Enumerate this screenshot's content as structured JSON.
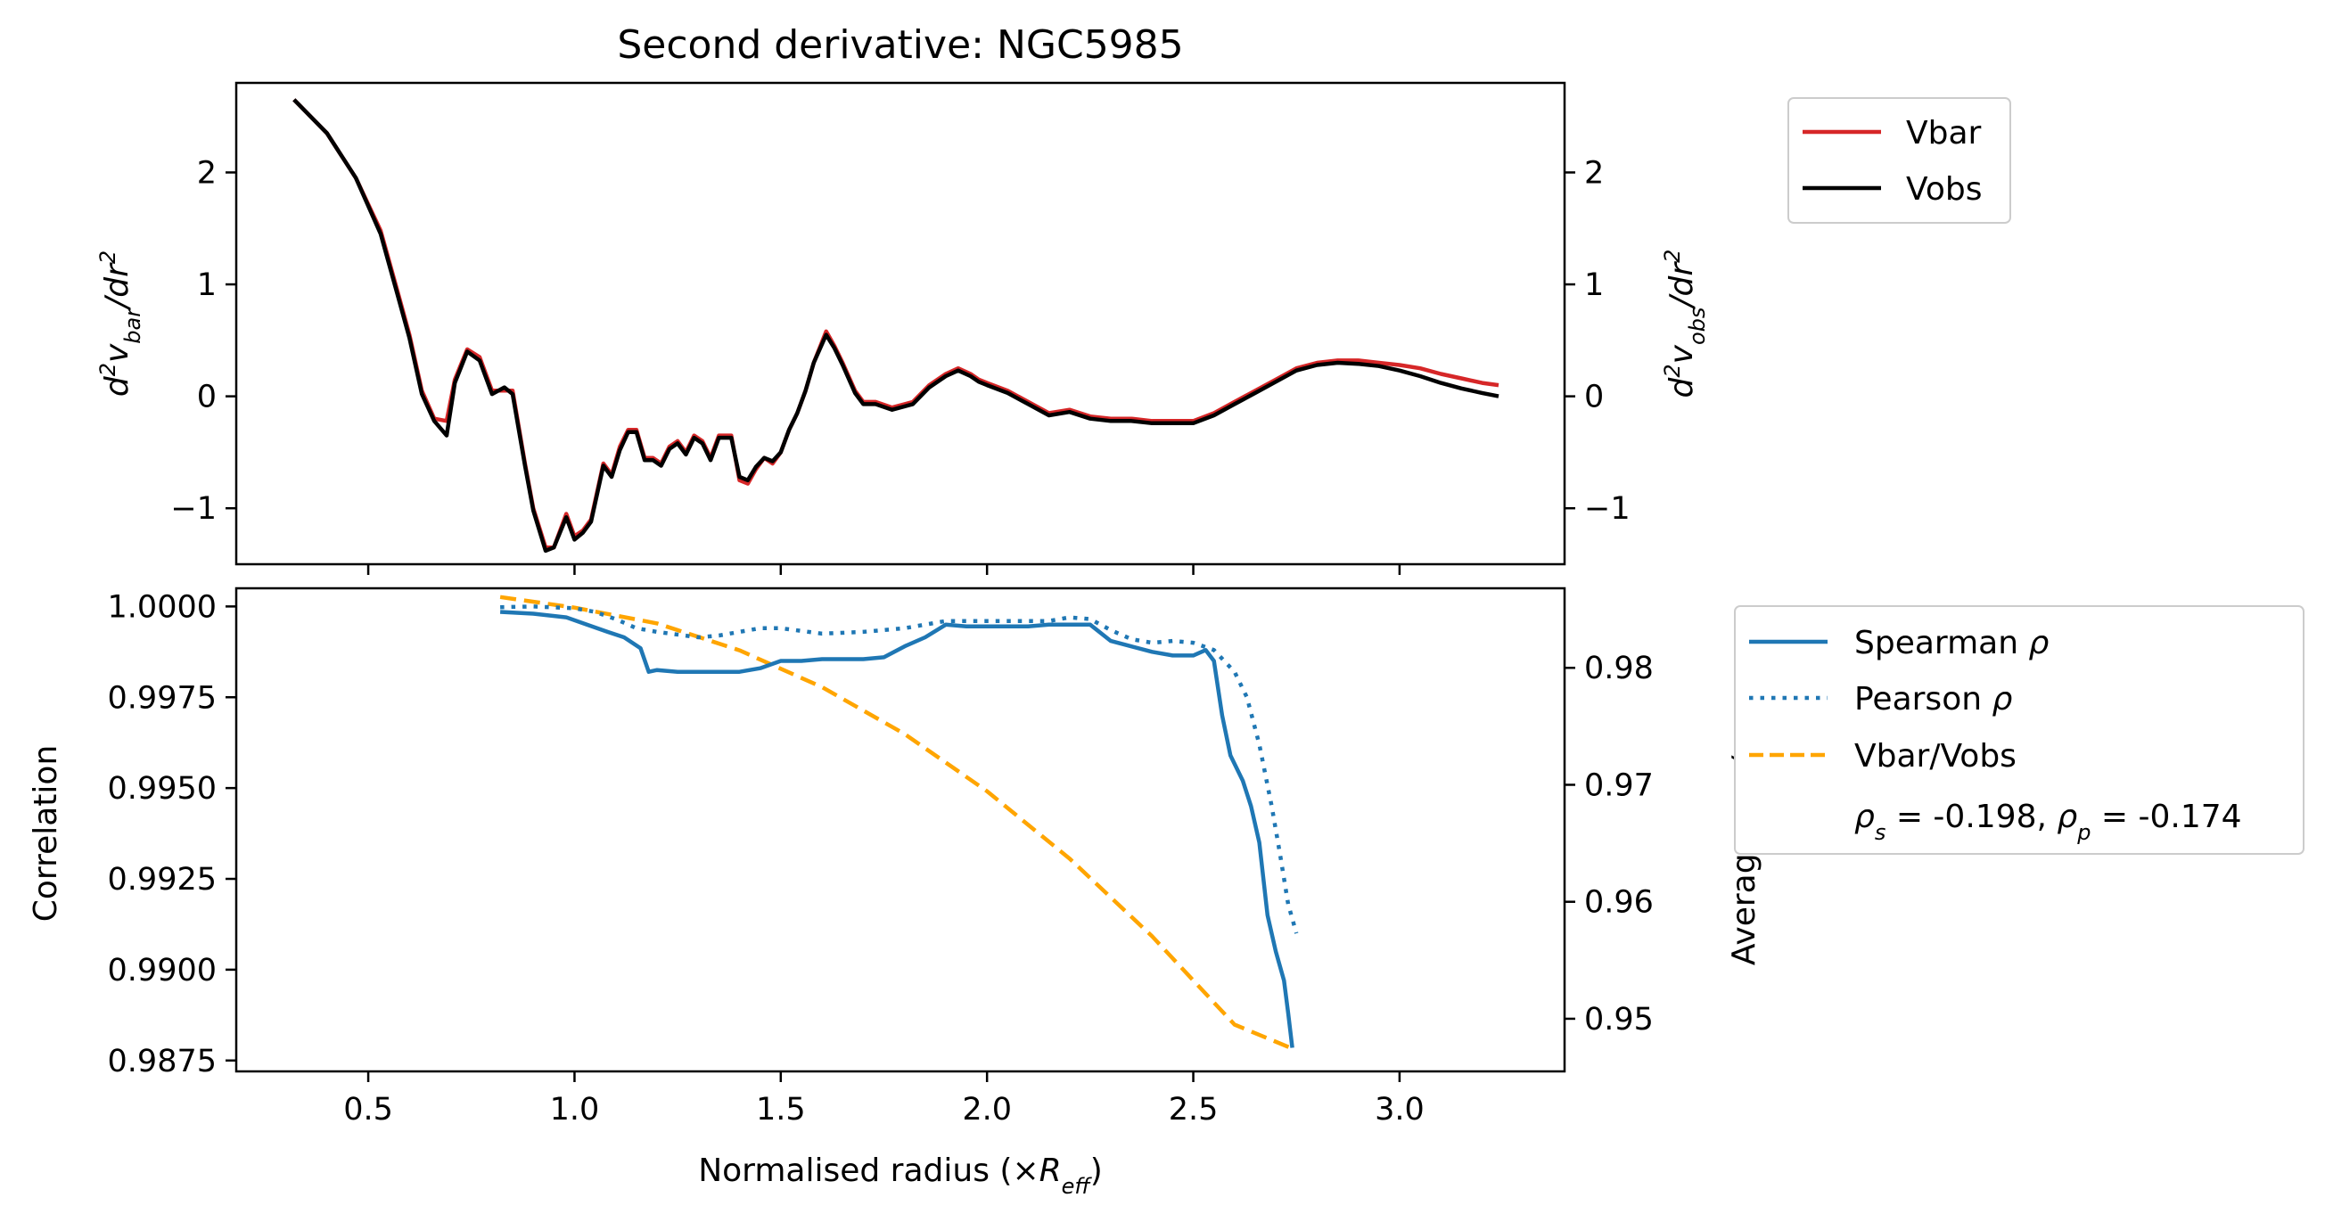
{
  "colors": {
    "vbar": "#d62728",
    "vobs": "#000000",
    "spearman": "#1f77b4",
    "pearson": "#1f77b4",
    "ratio": "#ffa500"
  },
  "chart_data": [
    {
      "type": "line",
      "title": "Second derivative: NGC5985",
      "xlabel": "",
      "ylabel_left": "d²v_bar/dr²",
      "ylabel_right": "d²v_obs/dr²",
      "xlim": [
        0.18,
        3.4
      ],
      "ylim": [
        -1.5,
        2.8
      ],
      "x_ticks": [
        "0.5",
        "1.0",
        "1.5",
        "2.0",
        "2.5",
        "3.0"
      ],
      "y_ticks_left": [
        "2",
        "1",
        "0",
        "−1"
      ],
      "y_ticks_left_values": [
        2,
        1,
        0,
        -1
      ],
      "y_ticks_right": [
        "2",
        "1",
        "0",
        "−1"
      ],
      "y_ticks_right_values": [
        2,
        1,
        0,
        -1
      ],
      "grid": false,
      "legend": "outside upper right",
      "series": [
        {
          "name": "Vbar",
          "axis": "left",
          "x": [
            0.32,
            0.4,
            0.47,
            0.53,
            0.57,
            0.6,
            0.63,
            0.66,
            0.69,
            0.71,
            0.74,
            0.77,
            0.8,
            0.83,
            0.85,
            0.88,
            0.9,
            0.93,
            0.95,
            0.98,
            1.0,
            1.02,
            1.04,
            1.07,
            1.09,
            1.11,
            1.13,
            1.15,
            1.17,
            1.19,
            1.21,
            1.23,
            1.25,
            1.27,
            1.29,
            1.31,
            1.33,
            1.35,
            1.38,
            1.4,
            1.42,
            1.44,
            1.46,
            1.48,
            1.5,
            1.52,
            1.54,
            1.56,
            1.58,
            1.61,
            1.63,
            1.65,
            1.68,
            1.7,
            1.73,
            1.77,
            1.82,
            1.86,
            1.9,
            1.93,
            1.96,
            1.98,
            2.0,
            2.05,
            2.1,
            2.15,
            2.2,
            2.25,
            2.3,
            2.35,
            2.4,
            2.45,
            2.5,
            2.55,
            2.6,
            2.65,
            2.7,
            2.75,
            2.8,
            2.85,
            2.9,
            2.95,
            3.0,
            3.05,
            3.1,
            3.15,
            3.2,
            3.24
          ],
          "y": [
            2.65,
            2.35,
            1.95,
            1.48,
            0.95,
            0.55,
            0.05,
            -0.2,
            -0.22,
            0.15,
            0.42,
            0.35,
            0.05,
            0.05,
            0.05,
            -0.6,
            -1.0,
            -1.35,
            -1.35,
            -1.05,
            -1.25,
            -1.2,
            -1.1,
            -0.6,
            -0.7,
            -0.45,
            -0.3,
            -0.3,
            -0.55,
            -0.55,
            -0.6,
            -0.45,
            -0.4,
            -0.5,
            -0.35,
            -0.4,
            -0.55,
            -0.35,
            -0.35,
            -0.75,
            -0.78,
            -0.65,
            -0.55,
            -0.6,
            -0.5,
            -0.3,
            -0.15,
            0.05,
            0.3,
            0.58,
            0.45,
            0.3,
            0.05,
            -0.05,
            -0.05,
            -0.1,
            -0.05,
            0.1,
            0.2,
            0.25,
            0.2,
            0.15,
            0.12,
            0.05,
            -0.05,
            -0.15,
            -0.12,
            -0.18,
            -0.2,
            -0.2,
            -0.22,
            -0.22,
            -0.22,
            -0.15,
            -0.05,
            0.05,
            0.15,
            0.25,
            0.3,
            0.32,
            0.32,
            0.3,
            0.28,
            0.25,
            0.2,
            0.16,
            0.12,
            0.1
          ]
        },
        {
          "name": "Vobs",
          "axis": "right",
          "x": [
            0.32,
            0.4,
            0.47,
            0.53,
            0.57,
            0.6,
            0.63,
            0.66,
            0.69,
            0.71,
            0.74,
            0.77,
            0.8,
            0.83,
            0.85,
            0.88,
            0.9,
            0.93,
            0.95,
            0.98,
            1.0,
            1.02,
            1.04,
            1.07,
            1.09,
            1.11,
            1.13,
            1.15,
            1.17,
            1.19,
            1.21,
            1.23,
            1.25,
            1.27,
            1.29,
            1.31,
            1.33,
            1.35,
            1.38,
            1.4,
            1.42,
            1.44,
            1.46,
            1.48,
            1.5,
            1.52,
            1.54,
            1.56,
            1.58,
            1.61,
            1.63,
            1.65,
            1.68,
            1.7,
            1.73,
            1.77,
            1.82,
            1.86,
            1.9,
            1.93,
            1.96,
            1.98,
            2.0,
            2.05,
            2.1,
            2.15,
            2.2,
            2.25,
            2.3,
            2.35,
            2.4,
            2.45,
            2.5,
            2.55,
            2.6,
            2.65,
            2.7,
            2.75,
            2.8,
            2.85,
            2.9,
            2.95,
            3.0,
            3.05,
            3.1,
            3.15,
            3.2,
            3.24
          ],
          "y": [
            2.65,
            2.35,
            1.95,
            1.45,
            0.92,
            0.52,
            0.02,
            -0.22,
            -0.35,
            0.12,
            0.4,
            0.32,
            0.02,
            0.08,
            0.02,
            -0.62,
            -1.02,
            -1.38,
            -1.35,
            -1.08,
            -1.28,
            -1.22,
            -1.12,
            -0.62,
            -0.72,
            -0.48,
            -0.32,
            -0.32,
            -0.57,
            -0.57,
            -0.62,
            -0.47,
            -0.42,
            -0.52,
            -0.37,
            -0.42,
            -0.57,
            -0.37,
            -0.37,
            -0.72,
            -0.75,
            -0.63,
            -0.55,
            -0.58,
            -0.5,
            -0.3,
            -0.15,
            0.05,
            0.3,
            0.55,
            0.43,
            0.28,
            0.03,
            -0.07,
            -0.07,
            -0.12,
            -0.07,
            0.08,
            0.18,
            0.23,
            0.18,
            0.13,
            0.1,
            0.03,
            -0.07,
            -0.17,
            -0.14,
            -0.2,
            -0.22,
            -0.22,
            -0.24,
            -0.24,
            -0.24,
            -0.17,
            -0.07,
            0.03,
            0.13,
            0.23,
            0.28,
            0.3,
            0.29,
            0.27,
            0.23,
            0.18,
            0.12,
            0.07,
            0.03,
            0.0
          ]
        }
      ]
    },
    {
      "type": "line",
      "title": "",
      "xlabel": "Normalised radius (×R_eff)",
      "ylabel_left": "Correlation",
      "ylabel_right": "Average v_bar/v_obs",
      "xlim": [
        0.18,
        3.4
      ],
      "ylim_left": [
        0.9872,
        1.0005
      ],
      "ylim_right": [
        0.9455,
        0.9868
      ],
      "x_ticks": [
        "0.5",
        "1.0",
        "1.5",
        "2.0",
        "2.5",
        "3.0"
      ],
      "x_ticks_values": [
        0.5,
        1.0,
        1.5,
        2.0,
        2.5,
        3.0
      ],
      "y_ticks_left": [
        "1.0000",
        "0.9975",
        "0.9950",
        "0.9925",
        "0.9900",
        "0.9875"
      ],
      "y_ticks_left_values": [
        1.0,
        0.9975,
        0.995,
        0.9925,
        0.99,
        0.9875
      ],
      "y_ticks_right": [
        "0.98",
        "0.97",
        "0.96",
        "0.95"
      ],
      "y_ticks_right_values": [
        0.98,
        0.97,
        0.96,
        0.95
      ],
      "grid": false,
      "legend": "outside upper right",
      "legend_annotation": "ρ_s = -0.198, ρ_p = -0.174",
      "series": [
        {
          "name": "Spearman ρ",
          "axis": "left",
          "style": "solid",
          "x": [
            0.82,
            0.9,
            0.98,
            1.03,
            1.08,
            1.12,
            1.16,
            1.18,
            1.2,
            1.25,
            1.3,
            1.35,
            1.4,
            1.45,
            1.5,
            1.55,
            1.6,
            1.65,
            1.7,
            1.75,
            1.8,
            1.85,
            1.9,
            1.95,
            2.0,
            2.05,
            2.1,
            2.15,
            2.2,
            2.25,
            2.3,
            2.35,
            2.4,
            2.45,
            2.5,
            2.53,
            2.55,
            2.57,
            2.59,
            2.62,
            2.64,
            2.66,
            2.68,
            2.7,
            2.72,
            2.73,
            2.74
          ],
          "y": [
            0.99985,
            0.9998,
            0.9997,
            0.9995,
            0.9993,
            0.99915,
            0.99885,
            0.9982,
            0.99825,
            0.9982,
            0.9982,
            0.9982,
            0.9982,
            0.9983,
            0.9985,
            0.9985,
            0.99855,
            0.99855,
            0.99855,
            0.9986,
            0.9989,
            0.99915,
            0.9995,
            0.99945,
            0.99945,
            0.99945,
            0.99945,
            0.9995,
            0.9995,
            0.9995,
            0.99905,
            0.9989,
            0.99875,
            0.99865,
            0.99865,
            0.9988,
            0.9985,
            0.997,
            0.9959,
            0.9952,
            0.9945,
            0.9935,
            0.9915,
            0.9905,
            0.9897,
            0.9888,
            0.98785
          ]
        },
        {
          "name": "Pearson ρ",
          "axis": "left",
          "style": "dotted",
          "x": [
            0.82,
            0.9,
            1.0,
            1.05,
            1.1,
            1.15,
            1.2,
            1.3,
            1.35,
            1.4,
            1.45,
            1.5,
            1.6,
            1.7,
            1.8,
            1.9,
            2.0,
            2.1,
            2.15,
            2.2,
            2.25,
            2.3,
            2.35,
            2.4,
            2.45,
            2.5,
            2.55,
            2.6,
            2.63,
            2.66,
            2.69,
            2.71,
            2.73,
            2.75
          ],
          "y": [
            0.99998,
            1.0,
            0.99995,
            0.99985,
            0.99965,
            0.9994,
            0.9993,
            0.99915,
            0.9992,
            0.9993,
            0.9994,
            0.9994,
            0.99925,
            0.9993,
            0.9994,
            0.9996,
            0.9996,
            0.9996,
            0.9996,
            0.9997,
            0.99965,
            0.99935,
            0.9991,
            0.999,
            0.99905,
            0.999,
            0.9988,
            0.9982,
            0.9975,
            0.9962,
            0.9945,
            0.9932,
            0.9918,
            0.991
          ]
        },
        {
          "name": "Vbar/Vobs",
          "axis": "right",
          "style": "dashed",
          "x": [
            0.82,
            1.0,
            1.2,
            1.4,
            1.6,
            1.8,
            2.0,
            2.2,
            2.4,
            2.6,
            2.74
          ],
          "y": [
            0.98605,
            0.98515,
            0.9838,
            0.9815,
            0.97835,
            0.97435,
            0.96945,
            0.9637,
            0.95705,
            0.9495,
            0.94745
          ]
        }
      ]
    }
  ]
}
